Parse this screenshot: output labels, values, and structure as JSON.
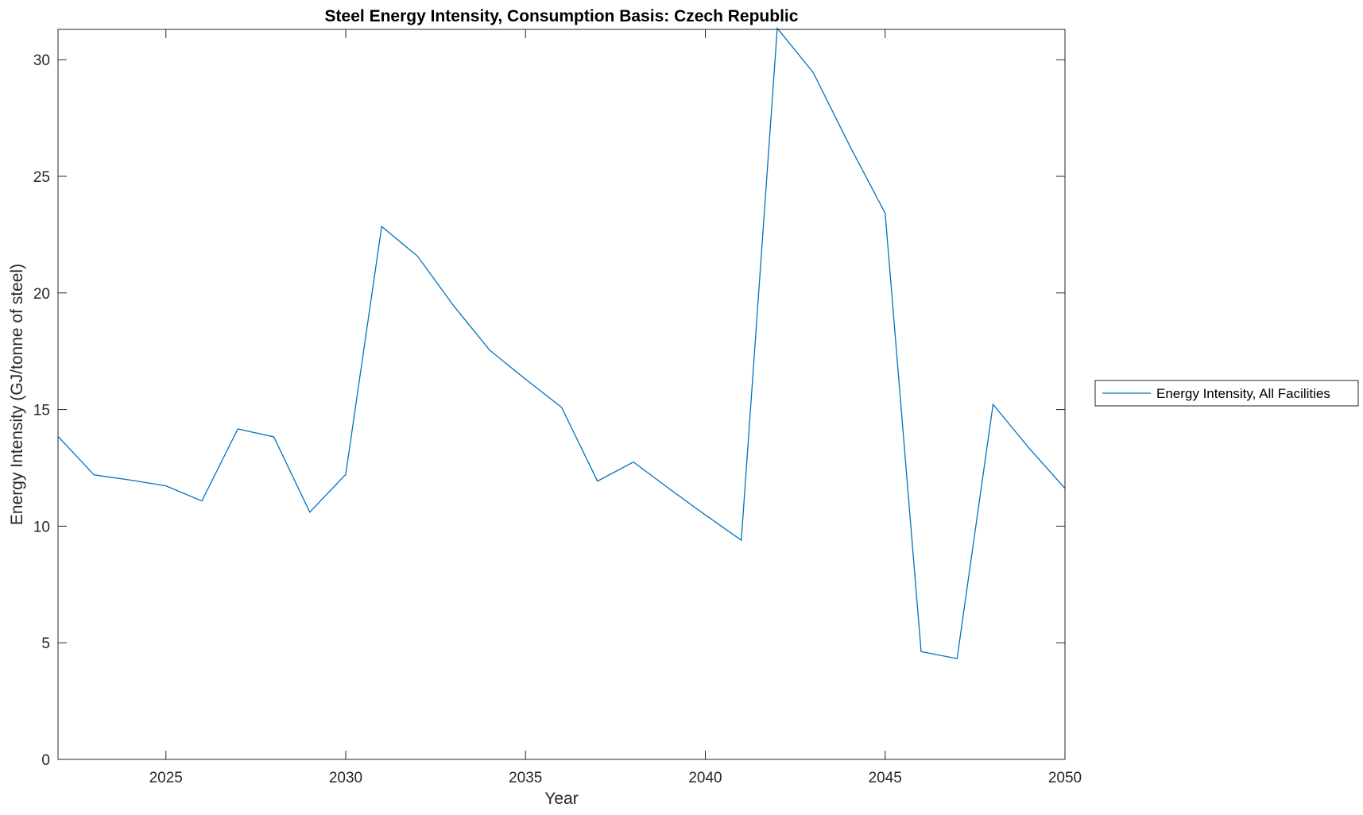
{
  "chart_data": {
    "type": "line",
    "title": "Steel Energy Intensity, Consumption Basis: Czech Republic",
    "xlabel": "Year",
    "ylabel": "Energy Intensity (GJ/tonne of steel)",
    "xlim": [
      2022,
      2050
    ],
    "ylim": [
      0,
      31.3
    ],
    "xticks": [
      2025,
      2030,
      2035,
      2040,
      2045,
      2050
    ],
    "yticks": [
      0,
      5,
      10,
      15,
      20,
      25,
      30
    ],
    "grid": false,
    "legend_position": "outside-right",
    "series": [
      {
        "name": "Energy Intensity, All Facilities",
        "color": "#0072BD",
        "x": [
          2022,
          2023,
          2024,
          2025,
          2026,
          2027,
          2028,
          2029,
          2030,
          2031,
          2032,
          2033,
          2034,
          2035,
          2036,
          2037,
          2038,
          2039,
          2040,
          2041,
          2042,
          2043,
          2044,
          2045,
          2046,
          2047,
          2048,
          2049,
          2050
        ],
        "y": [
          13.85,
          12.2,
          11.98,
          11.73,
          11.08,
          14.17,
          13.83,
          10.6,
          12.22,
          22.85,
          21.57,
          19.45,
          17.55,
          16.3,
          15.1,
          11.93,
          12.75,
          11.6,
          10.48,
          9.4,
          31.35,
          29.45,
          26.35,
          23.42,
          4.62,
          4.32,
          15.22,
          13.35,
          11.62
        ]
      }
    ]
  }
}
